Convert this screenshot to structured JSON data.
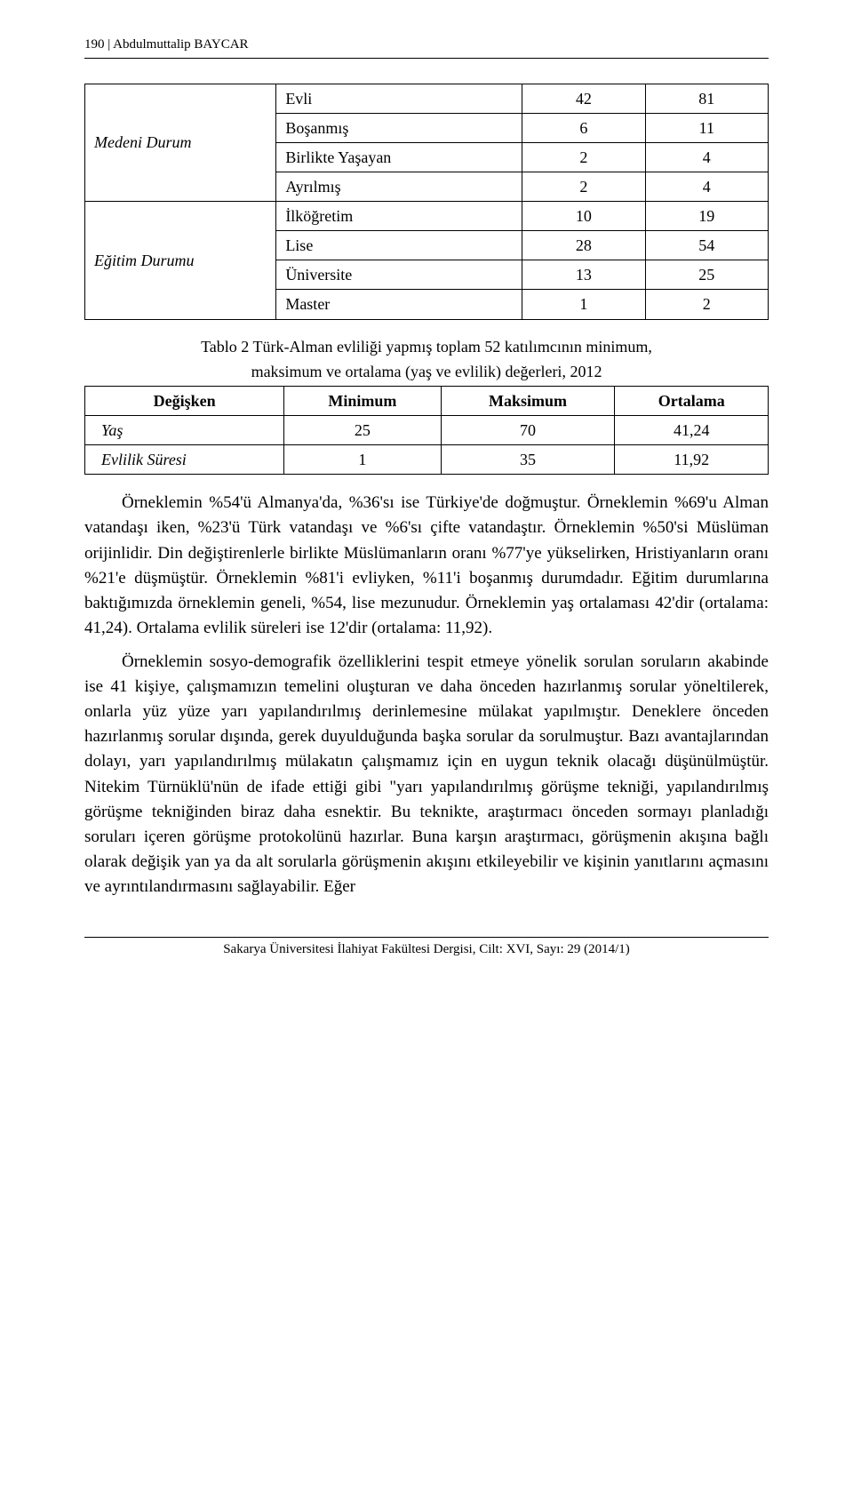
{
  "header": "190 | Abdulmuttalip BAYCAR",
  "table1": {
    "groups": [
      {
        "label": "Medeni Durum",
        "rows": [
          {
            "name": "Evli",
            "v1": "42",
            "v2": "81"
          },
          {
            "name": "Boşanmış",
            "v1": "6",
            "v2": "11"
          },
          {
            "name": "Birlikte Yaşayan",
            "v1": "2",
            "v2": "4"
          },
          {
            "name": "Ayrılmış",
            "v1": "2",
            "v2": "4"
          }
        ]
      },
      {
        "label": "Eğitim Durumu",
        "rows": [
          {
            "name": "İlköğretim",
            "v1": "10",
            "v2": "19"
          },
          {
            "name": "Lise",
            "v1": "28",
            "v2": "54"
          },
          {
            "name": "Üniversite",
            "v1": "13",
            "v2": "25"
          },
          {
            "name": "Master",
            "v1": "1",
            "v2": "2"
          }
        ]
      }
    ]
  },
  "caption2_l1": "Tablo 2 Türk-Alman evliliği yapmış toplam 52 katılımcının minimum,",
  "caption2_l2": "maksimum ve ortalama (yaş ve evlilik) değerleri, 2012",
  "table2": {
    "headers": {
      "h1": "Değişken",
      "h2": "Minimum",
      "h3": "Maksimum",
      "h4": "Ortalama"
    },
    "rows": [
      {
        "name": "Yaş",
        "min": "25",
        "max": "70",
        "avg": "41,24"
      },
      {
        "name": "Evlilik Süresi",
        "min": "1",
        "max": "35",
        "avg": "11,92"
      }
    ]
  },
  "p1": "Örneklemin %54'ü Almanya'da, %36'sı ise Türkiye'de doğmuştur. Örneklemin %69'u Alman vatandaşı iken, %23'ü Türk vatandaşı ve %6'sı çifte vatandaştır. Örneklemin %50'si Müslüman orijinlidir. Din değiştirenlerle birlikte Müslümanların oranı %77'ye yükselirken, Hristiyanların oranı %21'e düşmüştür. Örneklemin %81'i evliyken, %11'i boşanmış durumdadır. Eğitim durumlarına baktığımızda örneklemin geneli, %54, lise mezunudur. Örneklemin yaş ortalaması 42'dir (ortalama: 41,24). Ortalama evlilik süreleri ise 12'dir (ortalama: 11,92).",
  "p2": "Örneklemin sosyo-demografik özelliklerini tespit etmeye yönelik sorulan soruların akabinde ise 41 kişiye, çalışmamızın temelini oluşturan ve daha önceden hazırlanmış sorular yöneltilerek, onlarla yüz yüze yarı yapılandırılmış derinlemesine mülakat yapılmıştır. Deneklere önceden hazırlanmış sorular dışında, gerek duyulduğunda başka sorular da sorulmuştur. Bazı avantajlarından dolayı, yarı yapılandırılmış mülakatın çalışmamız için en uygun teknik olacağı düşünülmüştür. Nitekim Türnüklü'nün de ifade ettiği gibi \"yarı yapılandırılmış görüşme tekniği, yapılandırılmış görüşme tekniğinden biraz daha esnektir. Bu teknikte, araştırmacı önceden sormayı planladığı soruları içeren görüşme protokolünü hazırlar. Buna karşın araştırmacı, görüşmenin akışına bağlı olarak değişik yan ya da alt sorularla görüşmenin akışını etkileyebilir ve kişinin yanıtlarını açmasını ve ayrıntılandırmasını sağlayabilir. Eğer",
  "footer": "Sakarya Üniversitesi İlahiyat Fakültesi Dergisi, Cilt: XVI, Sayı: 29 (2014/1)"
}
